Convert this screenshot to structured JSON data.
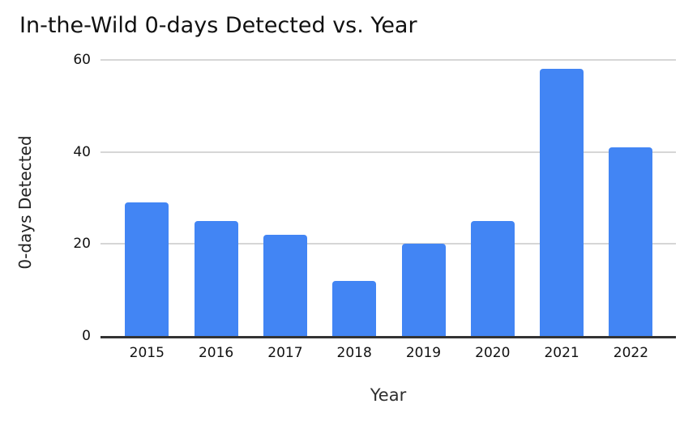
{
  "chart_data": {
    "type": "bar",
    "title": "In-the-Wild 0-days Detected vs. Year",
    "xlabel": "Year",
    "ylabel": "0-days Detected",
    "categories": [
      "2015",
      "2016",
      "2017",
      "2018",
      "2019",
      "2020",
      "2021",
      "2022"
    ],
    "values": [
      29,
      25,
      22,
      12,
      20,
      25,
      58,
      41
    ],
    "ylim": [
      0,
      60
    ],
    "yticks": [
      0,
      20,
      40,
      60
    ],
    "grid": "horizontal-only",
    "legend": "none",
    "colors": {
      "bar": "#4285F4",
      "gridline": "#d6d6d6",
      "axis_line": "#333333",
      "title_text": "#111111",
      "axis_title_text": "#2f2f2f",
      "tick_text": "#111111",
      "background": "#ffffff"
    }
  }
}
